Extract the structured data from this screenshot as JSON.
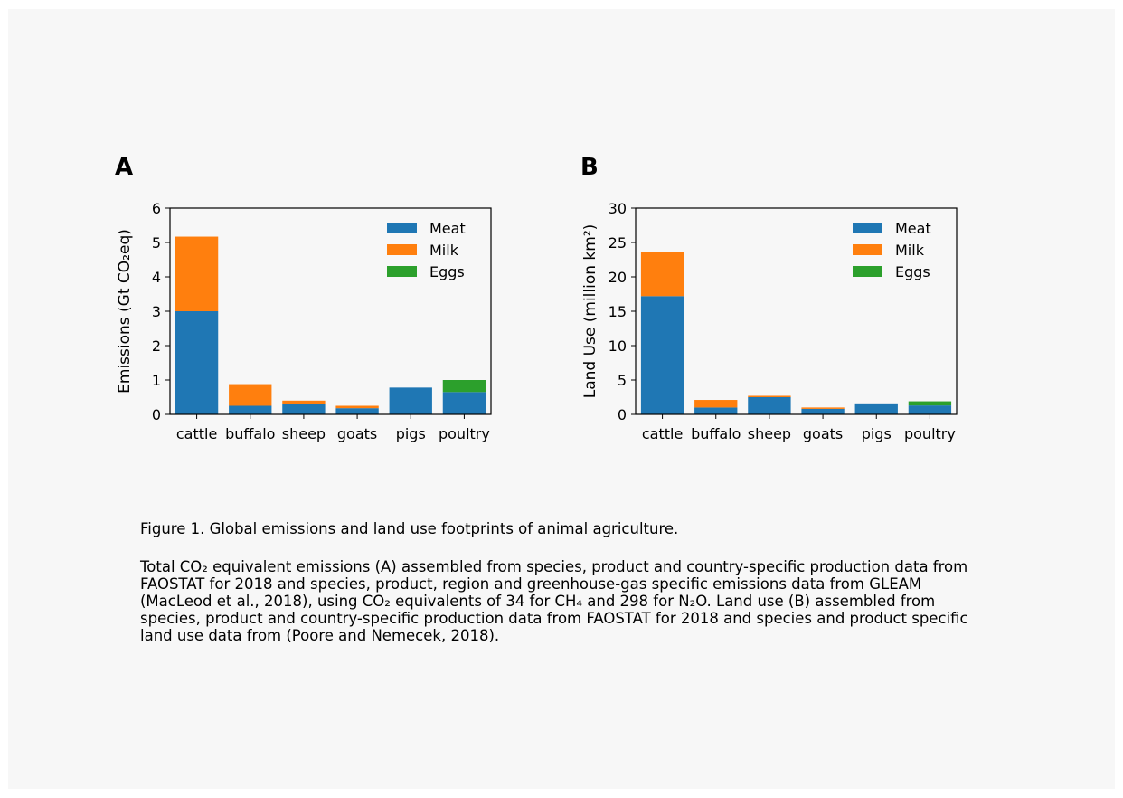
{
  "panels": [
    {
      "id": "A",
      "letter": "A"
    },
    {
      "id": "B",
      "letter": "B"
    }
  ],
  "chart_data": [
    {
      "panel": "A",
      "type": "bar",
      "stacked": true,
      "categories": [
        "cattle",
        "buffalo",
        "sheep",
        "goats",
        "pigs",
        "poultry"
      ],
      "series": [
        {
          "name": "Meat",
          "color": "#1f77b4",
          "values": [
            3.0,
            0.25,
            0.3,
            0.18,
            0.78,
            0.65
          ]
        },
        {
          "name": "Milk",
          "color": "#ff7f0e",
          "values": [
            2.17,
            0.63,
            0.1,
            0.07,
            0.0,
            0.0
          ]
        },
        {
          "name": "Eggs",
          "color": "#2ca02c",
          "values": [
            0.0,
            0.0,
            0.0,
            0.0,
            0.0,
            0.35
          ]
        }
      ],
      "ylabel": "Emissions (Gt CO₂eq)",
      "ylim": [
        0,
        6
      ],
      "yticks": [
        0,
        1,
        2,
        3,
        4,
        5,
        6
      ],
      "legend": "top-right",
      "grid": false
    },
    {
      "panel": "B",
      "type": "bar",
      "stacked": true,
      "categories": [
        "cattle",
        "buffalo",
        "sheep",
        "goats",
        "pigs",
        "poultry"
      ],
      "series": [
        {
          "name": "Meat",
          "color": "#1f77b4",
          "values": [
            17.2,
            1.0,
            2.5,
            0.8,
            1.6,
            1.3
          ]
        },
        {
          "name": "Milk",
          "color": "#ff7f0e",
          "values": [
            6.4,
            1.1,
            0.2,
            0.2,
            0.0,
            0.0
          ]
        },
        {
          "name": "Eggs",
          "color": "#2ca02c",
          "values": [
            0.0,
            0.0,
            0.0,
            0.0,
            0.0,
            0.6
          ]
        }
      ],
      "ylabel": "Land Use (million km²)",
      "ylim": [
        0,
        30
      ],
      "yticks": [
        0,
        5,
        10,
        15,
        20,
        25,
        30
      ],
      "legend": "top-right",
      "grid": false
    }
  ],
  "caption": {
    "title": "Figure 1. Global emissions and land use footprints of animal agriculture.",
    "body": "Total CO₂ equivalent emissions (A) assembled from species, product and country-specific production data from FAOSTAT for 2018 and species, product, region and greenhouse-gas specific emissions data from GLEAM (MacLeod et al., 2018), using CO₂ equivalents of 34 for CH₄ and 298 for N₂O. Land use (B) assembled from species, product and country-specific production data from FAOSTAT for 2018 and species and product specific land use data from (Poore and Nemecek, 2018)."
  }
}
